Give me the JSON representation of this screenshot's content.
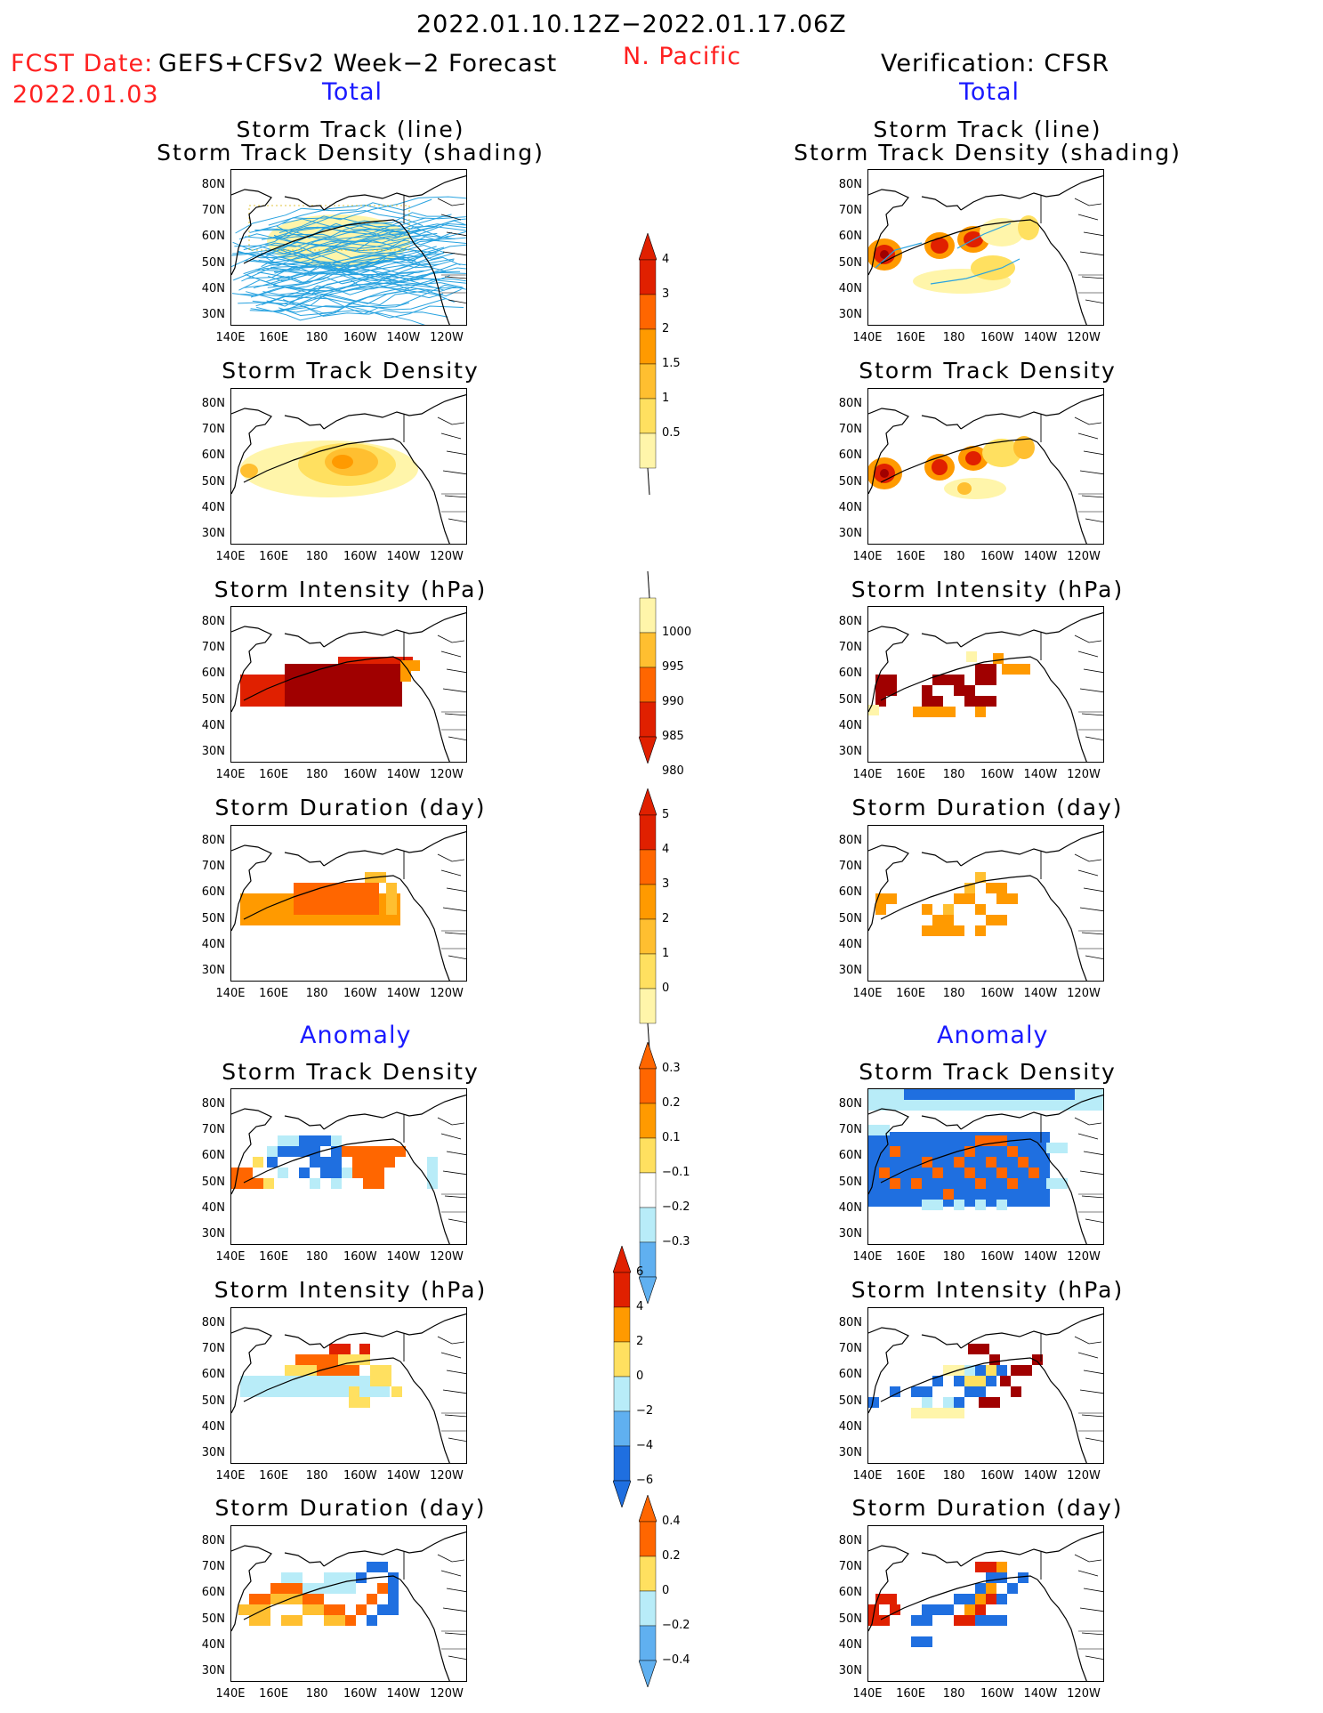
{
  "header": {
    "period": "2022.01.10.12Z−2022.01.17.06Z",
    "fcst_date_label": "FCST Date:",
    "model": "GEFS+CFSv2 Week−2 Forecast",
    "fcst_date": "2022.01.03",
    "region": "N. Pacific",
    "verification": "Verification: CFSR"
  },
  "sections": {
    "total": "Total",
    "anomaly": "Anomaly"
  },
  "panel_titles": {
    "track": [
      "Storm Track (line)",
      "Storm Track Density (shading)"
    ],
    "density": "Storm Track Density",
    "intensity": "Storm Intensity (hPa)",
    "duration": "Storm Duration (day)"
  },
  "axes": {
    "lat_ticks": [
      "80N",
      "70N",
      "60N",
      "50N",
      "40N",
      "30N"
    ],
    "lon_ticks": [
      "140E",
      "160E",
      "180",
      "160W",
      "140W",
      "120W"
    ]
  },
  "colorbars": {
    "density_total": [
      "0.5",
      "1",
      "1.5",
      "2",
      "3",
      "4"
    ],
    "intensity_total": [
      "1000",
      "995",
      "990",
      "985",
      "980"
    ],
    "duration_total": [
      "0",
      "1",
      "2",
      "3",
      "4",
      "5"
    ],
    "density_anom": [
      "0.3",
      "0.2",
      "0.1",
      "−0.1",
      "−0.2",
      "−0.3"
    ],
    "intensity_anom": [
      "6",
      "4",
      "2",
      "0",
      "−2",
      "−4",
      "−6"
    ],
    "duration_anom": [
      "0.4",
      "0.2",
      "0",
      "−0.2",
      "−0.4"
    ]
  },
  "colors": {
    "pale_yellow": "#fff5aa",
    "yellow": "#ffe060",
    "orange_light": "#ffbf30",
    "orange": "#ff9a00",
    "orange_dark": "#ff6600",
    "red": "#e02000",
    "dark_red": "#a00000",
    "light_blue": "#b8ecf8",
    "mid_blue": "#60b0f0",
    "blue": "#1f6fe0",
    "track_line": "#29a3e0"
  },
  "chart_data": [
    {
      "type": "heatmap",
      "title": "Storm Track (line) / Storm Track Density (shading)",
      "panel": "GEFS+CFSv2 Total",
      "xlim": [
        "140E",
        "120W"
      ],
      "ylim": [
        "30N",
        "80N"
      ]
    },
    {
      "type": "heatmap",
      "title": "Storm Track (line) / Storm Track Density (shading)",
      "panel": "CFSR Total",
      "xlim": [
        "140E",
        "120W"
      ],
      "ylim": [
        "30N",
        "80N"
      ]
    },
    {
      "type": "heatmap",
      "title": "Storm Track Density",
      "panel": "GEFS+CFSv2 Total",
      "color_levels": [
        0.5,
        1,
        1.5,
        2,
        3,
        4
      ]
    },
    {
      "type": "heatmap",
      "title": "Storm Track Density",
      "panel": "CFSR Total",
      "color_levels": [
        0.5,
        1,
        1.5,
        2,
        3,
        4
      ]
    },
    {
      "type": "heatmap",
      "title": "Storm Intensity (hPa)",
      "panel": "GEFS+CFSv2 Total",
      "color_levels": [
        1000,
        995,
        990,
        985,
        980
      ]
    },
    {
      "type": "heatmap",
      "title": "Storm Intensity (hPa)",
      "panel": "CFSR Total",
      "color_levels": [
        1000,
        995,
        990,
        985,
        980
      ]
    },
    {
      "type": "heatmap",
      "title": "Storm Duration (day)",
      "panel": "GEFS+CFSv2 Total",
      "color_levels": [
        0,
        1,
        2,
        3,
        4,
        5
      ]
    },
    {
      "type": "heatmap",
      "title": "Storm Duration (day)",
      "panel": "CFSR Total",
      "color_levels": [
        0,
        1,
        2,
        3,
        4,
        5
      ]
    },
    {
      "type": "heatmap",
      "title": "Storm Track Density",
      "panel": "GEFS+CFSv2 Anomaly",
      "color_levels": [
        -0.3,
        -0.2,
        -0.1,
        0.1,
        0.2,
        0.3
      ]
    },
    {
      "type": "heatmap",
      "title": "Storm Track Density",
      "panel": "CFSR Anomaly",
      "color_levels": [
        -0.3,
        -0.2,
        -0.1,
        0.1,
        0.2,
        0.3
      ]
    },
    {
      "type": "heatmap",
      "title": "Storm Intensity (hPa)",
      "panel": "GEFS+CFSv2 Anomaly",
      "color_levels": [
        -6,
        -4,
        -2,
        0,
        2,
        4,
        6
      ]
    },
    {
      "type": "heatmap",
      "title": "Storm Intensity (hPa)",
      "panel": "CFSR Anomaly",
      "color_levels": [
        -6,
        -4,
        -2,
        0,
        2,
        4,
        6
      ]
    },
    {
      "type": "heatmap",
      "title": "Storm Duration (day)",
      "panel": "GEFS+CFSv2 Anomaly",
      "color_levels": [
        -0.4,
        -0.2,
        0,
        0.2,
        0.4
      ]
    },
    {
      "type": "heatmap",
      "title": "Storm Duration (day)",
      "panel": "CFSR Anomaly",
      "color_levels": [
        -0.4,
        -0.2,
        0,
        0.2,
        0.4
      ]
    }
  ]
}
